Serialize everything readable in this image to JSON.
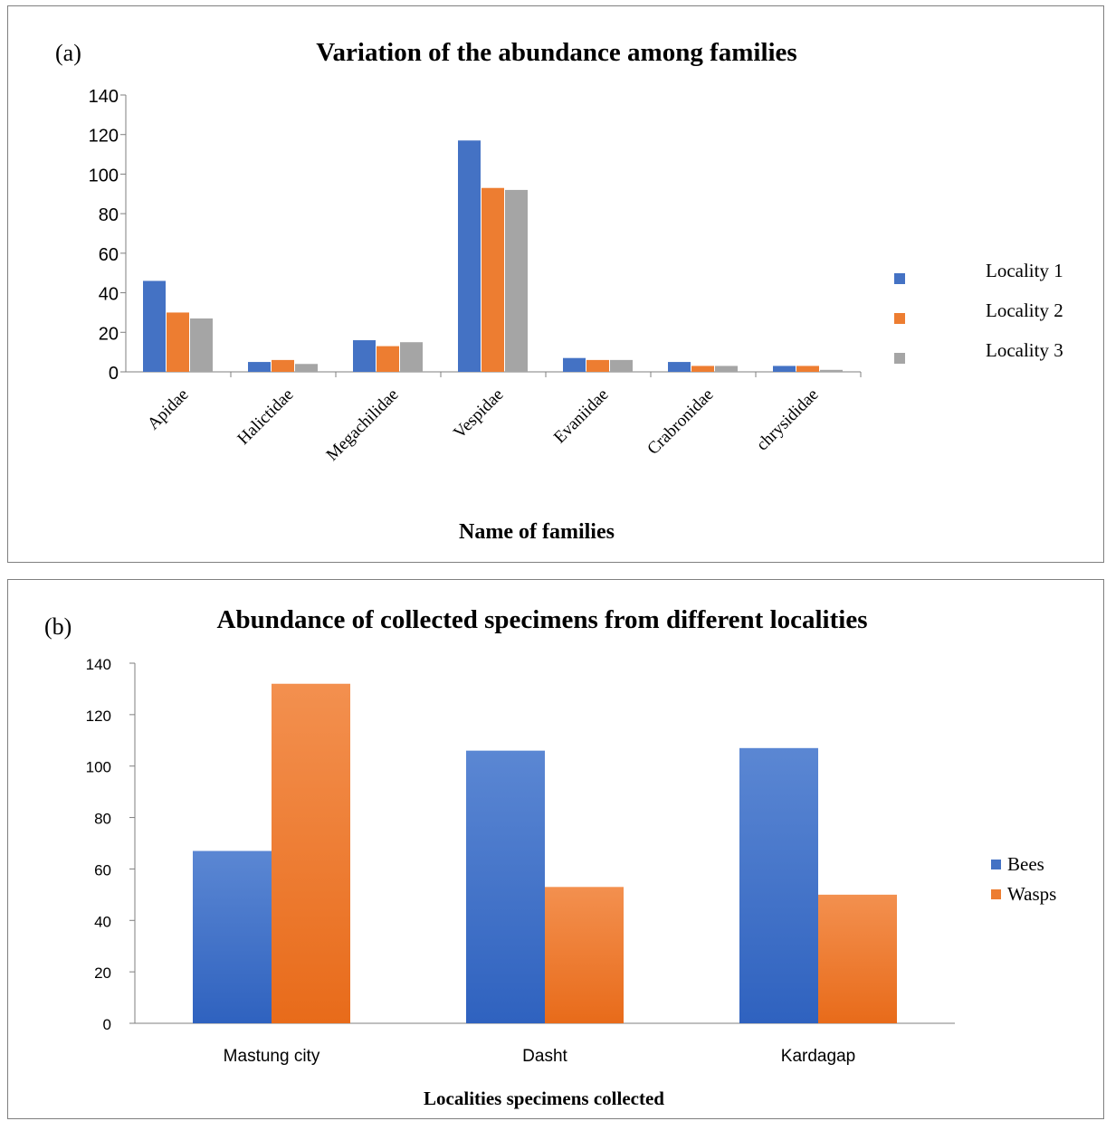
{
  "chart_data": [
    {
      "type": "bar",
      "panel_label": "(a)",
      "title": "Variation of the abundance among families",
      "xlabel": "Name of families",
      "ylabel": "",
      "ylim": [
        0,
        140
      ],
      "yticks": [
        0,
        20,
        40,
        60,
        80,
        100,
        120,
        140
      ],
      "grid": false,
      "legend_position": "right",
      "categories": [
        "Apidae",
        "Halictidae",
        "Megachilidae",
        "Vespidae",
        "Evaniidae",
        "Crabronidae",
        "chrysididae"
      ],
      "series": [
        {
          "name": "Locality 1",
          "color": "#4472c4",
          "values": [
            46,
            5,
            16,
            117,
            7,
            5,
            3
          ]
        },
        {
          "name": "Locality 2",
          "color": "#ed7d31",
          "values": [
            30,
            6,
            13,
            93,
            6,
            3,
            3
          ]
        },
        {
          "name": "Locality 3",
          "color": "#a5a5a5",
          "values": [
            27,
            4,
            15,
            92,
            6,
            3,
            1
          ]
        }
      ]
    },
    {
      "type": "bar",
      "panel_label": "(b)",
      "title": "Abundance of collected specimens from different localities",
      "xlabel": "Localities specimens collected",
      "ylabel": "",
      "ylim": [
        0,
        140
      ],
      "ytick_labels": [
        "0",
        "20",
        "40",
        "60",
        "80",
        "100",
        "120",
        "140"
      ],
      "grid": false,
      "legend_position": "right",
      "categories": [
        "Mastung city",
        "Dasht",
        "Kardagap"
      ],
      "series": [
        {
          "name": "Bees",
          "color": "#4472c4",
          "values": [
            67,
            106,
            107
          ]
        },
        {
          "name": "Wasps",
          "color": "#ed7d31",
          "values": [
            132,
            53,
            50
          ]
        }
      ]
    }
  ]
}
